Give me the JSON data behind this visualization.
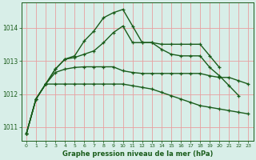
{
  "xlabel": "Graphe pression niveau de la mer (hPa)",
  "bg_color": "#d8eee8",
  "grid_color": "#e8a0a0",
  "line_color": "#1a5c1a",
  "xlim": [
    -0.5,
    23.5
  ],
  "ylim": [
    1010.6,
    1014.75
  ],
  "yticks": [
    1011,
    1012,
    1013,
    1014
  ],
  "xticks": [
    0,
    1,
    2,
    3,
    4,
    5,
    6,
    7,
    8,
    9,
    10,
    11,
    12,
    13,
    14,
    15,
    16,
    17,
    18,
    19,
    20,
    21,
    22,
    23
  ],
  "series": [
    {
      "x": [
        0,
        1,
        2,
        3,
        4,
        5,
        6,
        7,
        8,
        9,
        10,
        11,
        12,
        13,
        14,
        15,
        16,
        17,
        18,
        19,
        20
      ],
      "y": [
        1010.8,
        1011.85,
        1012.3,
        1012.75,
        1013.05,
        1013.15,
        1013.6,
        1013.9,
        1014.3,
        1014.45,
        1014.55,
        1014.05,
        1013.55,
        1013.55,
        1013.5,
        1013.5,
        1013.5,
        1013.5,
        1013.5,
        1013.15,
        1012.8
      ]
    },
    {
      "x": [
        0,
        1,
        2,
        3,
        4,
        5,
        6,
        7,
        8,
        9,
        10,
        11,
        12,
        13,
        14,
        15,
        16,
        17,
        18,
        19,
        20,
        21,
        22
      ],
      "y": [
        1010.8,
        1011.85,
        1012.3,
        1012.75,
        1013.05,
        1013.1,
        1013.2,
        1013.3,
        1013.55,
        1013.85,
        1014.05,
        1013.55,
        1013.55,
        1013.55,
        1013.35,
        1013.2,
        1013.15,
        1013.15,
        1013.15,
        1012.8,
        1012.55,
        1012.25,
        1011.95
      ]
    },
    {
      "x": [
        0,
        1,
        2,
        3,
        4,
        5,
        6,
        7,
        8,
        9,
        10,
        11,
        12,
        13,
        14,
        15,
        16,
        17,
        18,
        19,
        20,
        21,
        22,
        23
      ],
      "y": [
        1010.8,
        1011.85,
        1012.3,
        1012.3,
        1012.3,
        1012.3,
        1012.3,
        1012.3,
        1012.3,
        1012.3,
        1012.3,
        1012.25,
        1012.2,
        1012.15,
        1012.05,
        1011.95,
        1011.85,
        1011.75,
        1011.65,
        1011.6,
        1011.55,
        1011.5,
        1011.45,
        1011.4
      ]
    },
    {
      "x": [
        0,
        1,
        2,
        3,
        4,
        5,
        6,
        7,
        8,
        9,
        10,
        11,
        12,
        13,
        14,
        15,
        16,
        17,
        18,
        19,
        20,
        21,
        22,
        23
      ],
      "y": [
        1010.8,
        1011.85,
        1012.3,
        1012.65,
        1012.75,
        1012.8,
        1012.82,
        1012.82,
        1012.82,
        1012.82,
        1012.7,
        1012.65,
        1012.62,
        1012.62,
        1012.62,
        1012.62,
        1012.62,
        1012.62,
        1012.62,
        1012.55,
        1012.5,
        1012.5,
        1012.4,
        1012.3
      ]
    }
  ]
}
